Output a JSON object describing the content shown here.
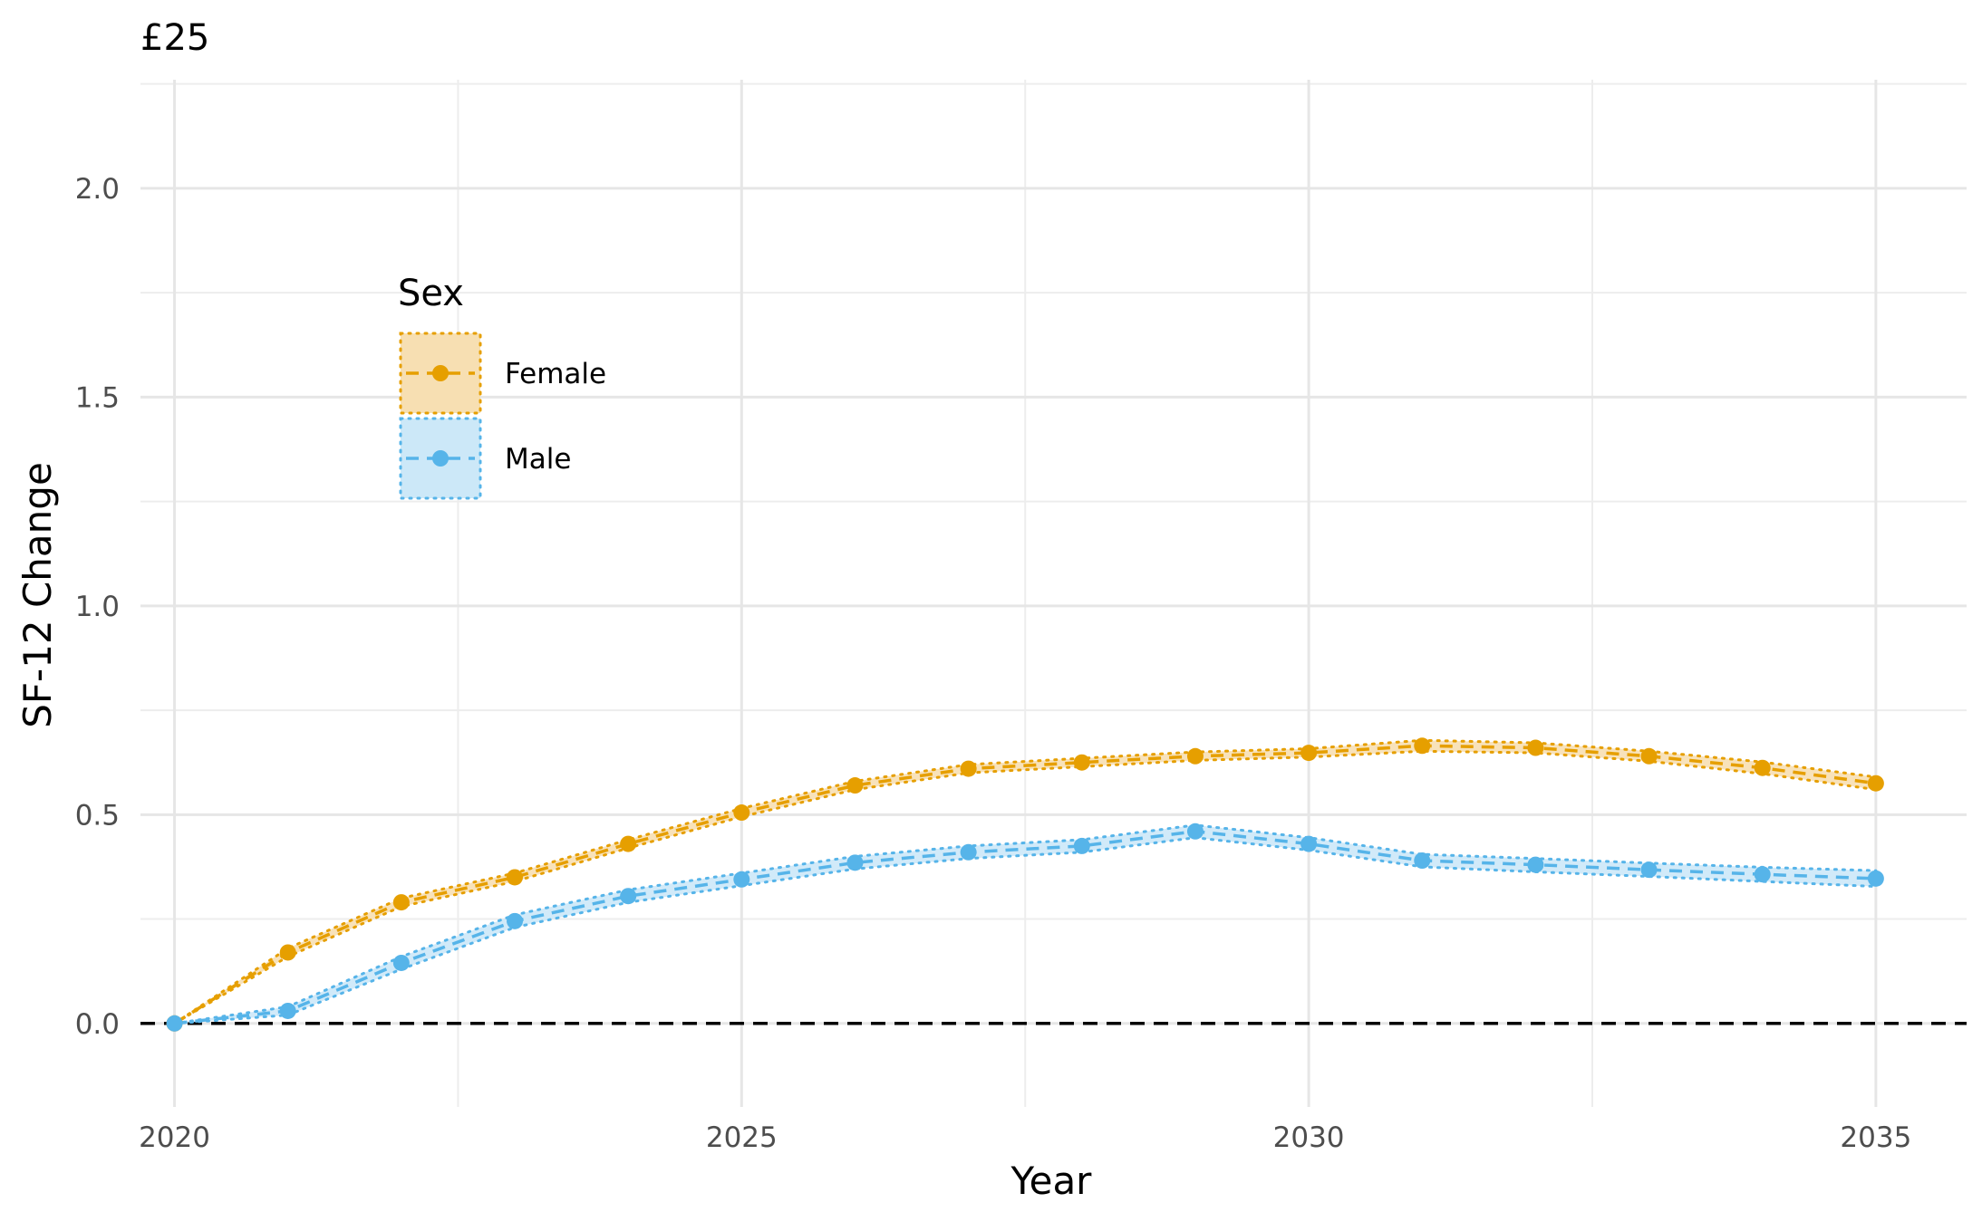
{
  "chart_data": {
    "type": "line",
    "title": "£25",
    "xlabel": "Year",
    "ylabel": "SF-12 Change",
    "xlim": [
      2019.7,
      2035.8
    ],
    "ylim": [
      -0.2,
      2.26
    ],
    "x_ticks": [
      2020,
      2025,
      2030,
      2035
    ],
    "y_ticks": [
      0.0,
      0.5,
      1.0,
      1.5,
      2.0
    ],
    "x_tick_labels": [
      "2020",
      "2025",
      "2030",
      "2035"
    ],
    "y_tick_labels": [
      "0.0",
      "0.5",
      "1.0",
      "1.5",
      "2.0"
    ],
    "grid": true,
    "reference_line": {
      "y": 0,
      "style": "dashed",
      "color": "#000000"
    },
    "legend": {
      "title": "Sex",
      "placement": "upper-left-inside"
    },
    "x": [
      2020,
      2021,
      2022,
      2023,
      2024,
      2025,
      2026,
      2027,
      2028,
      2029,
      2030,
      2031,
      2032,
      2033,
      2034,
      2035
    ],
    "series": [
      {
        "name": "Female",
        "color": "#E69F00",
        "fill": "#F7DFB2",
        "values": [
          0.0,
          0.17,
          0.29,
          0.35,
          0.43,
          0.505,
          0.57,
          0.61,
          0.625,
          0.64,
          0.648,
          0.665,
          0.66,
          0.64,
          0.612,
          0.575
        ],
        "lower": [
          0.0,
          0.16,
          0.28,
          0.34,
          0.42,
          0.495,
          0.56,
          0.6,
          0.615,
          0.63,
          0.638,
          0.652,
          0.648,
          0.628,
          0.598,
          0.56
        ],
        "upper": [
          0.0,
          0.18,
          0.3,
          0.36,
          0.44,
          0.515,
          0.58,
          0.62,
          0.635,
          0.65,
          0.658,
          0.678,
          0.672,
          0.652,
          0.626,
          0.59
        ]
      },
      {
        "name": "Male",
        "color": "#56B4E9",
        "fill": "#CCE8F8",
        "values": [
          0.0,
          0.03,
          0.145,
          0.245,
          0.305,
          0.345,
          0.385,
          0.41,
          0.425,
          0.46,
          0.43,
          0.39,
          0.38,
          0.368,
          0.357,
          0.347
        ],
        "lower": [
          0.0,
          0.02,
          0.13,
          0.23,
          0.29,
          0.33,
          0.37,
          0.395,
          0.41,
          0.445,
          0.415,
          0.375,
          0.363,
          0.352,
          0.34,
          0.328
        ],
        "upper": [
          0.0,
          0.04,
          0.16,
          0.26,
          0.32,
          0.36,
          0.4,
          0.425,
          0.44,
          0.475,
          0.445,
          0.405,
          0.395,
          0.384,
          0.374,
          0.366
        ]
      }
    ]
  }
}
